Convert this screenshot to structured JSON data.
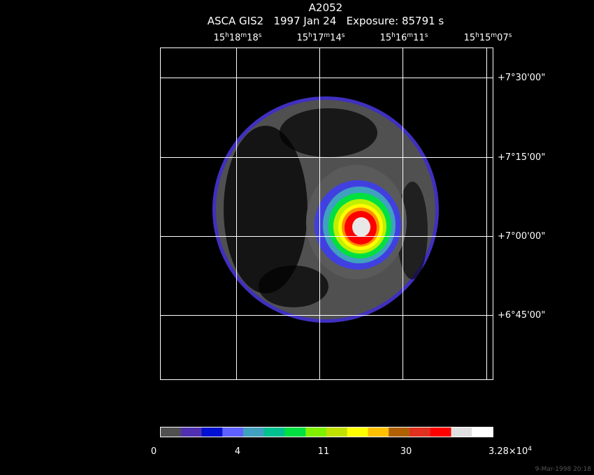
{
  "header": {
    "title": "A2052",
    "subtitle": "ASCA GIS2   1997 Jan 24   Exposure: 85791 s"
  },
  "ra_labels": [
    [
      "15",
      "h",
      "18",
      "m",
      "18",
      "s"
    ],
    [
      "15",
      "h",
      "17",
      "m",
      "14",
      "s"
    ],
    [
      "15",
      "h",
      "16",
      "m",
      "11",
      "s"
    ],
    [
      "15",
      "h",
      "15",
      "m",
      "07",
      "s"
    ]
  ],
  "dec_labels": [
    "+7°30'00\"",
    "+7°15'00\"",
    "+7°00'00\"",
    "+6°45'00\""
  ],
  "colorbar": {
    "colors": [
      "#505050",
      "#5030b0",
      "#0010d0",
      "#6060ff",
      "#40a0c0",
      "#00c090",
      "#00e040",
      "#80f000",
      "#c0e000",
      "#ffff00",
      "#ffc000",
      "#b06000",
      "#e03020",
      "#ff0000",
      "#e0e0e0",
      "#ffffff"
    ],
    "labels": [
      [
        "0"
      ],
      [
        "4"
      ],
      [
        "11"
      ],
      [
        "30"
      ],
      [
        "3.28×10",
        "4"
      ]
    ]
  },
  "footer": "9-Mar-1998 20:18"
}
